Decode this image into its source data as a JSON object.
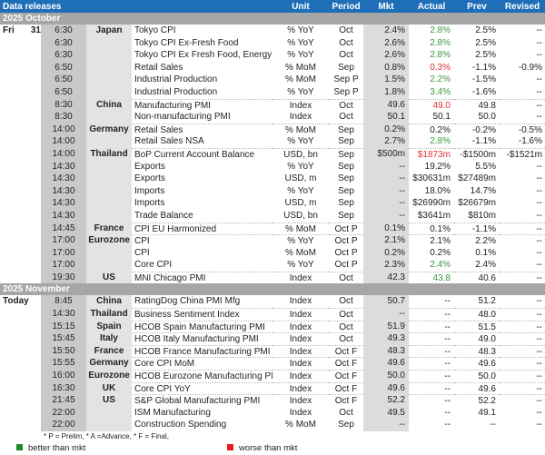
{
  "header": {
    "title": "Data releases",
    "unit": "Unit",
    "period": "Period",
    "mkt": "Mkt",
    "actual": "Actual",
    "prev": "Prev",
    "revised": "Revised"
  },
  "colors": {
    "better": "#3a9a3a",
    "worse": "#e03030",
    "header": "#1f6fb8"
  },
  "sections": [
    {
      "title": "2025 October",
      "day": "Fri",
      "date": "31",
      "rows": [
        {
          "time": "6:30",
          "country": "Japan",
          "event": "Tokyo CPI",
          "unit": "% YoY",
          "period": "Oct",
          "mkt": "2.4%",
          "actual": "2.8%",
          "tone": "g",
          "prev": "2.5%",
          "revised": "--"
        },
        {
          "time": "6:30",
          "country": "",
          "event": "Tokyo CPI Ex-Fresh Food",
          "unit": "% YoY",
          "period": "Oct",
          "mkt": "2.6%",
          "actual": "2.8%",
          "tone": "g",
          "prev": "2.5%",
          "revised": "--"
        },
        {
          "time": "6:30",
          "country": "",
          "event": "Tokyo CPI Ex Fresh Food, Energy",
          "unit": "% YoY",
          "period": "Oct",
          "mkt": "2.6%",
          "actual": "2.8%",
          "tone": "g",
          "prev": "2.5%",
          "revised": "--"
        },
        {
          "time": "6:50",
          "country": "",
          "event": "Retail Sales",
          "unit": "% MoM",
          "period": "Sep",
          "mkt": "0.8%",
          "actual": "0.3%",
          "tone": "r",
          "prev": "-1.1%",
          "revised": "-0.9%"
        },
        {
          "time": "6:50",
          "country": "",
          "event": "Industrial Production",
          "unit": "% MoM",
          "period": "Sep P",
          "mkt": "1.5%",
          "actual": "2.2%",
          "tone": "g",
          "prev": "-1.5%",
          "revised": "--"
        },
        {
          "time": "6:50",
          "country": "",
          "event": "Industrial Production",
          "unit": "% YoY",
          "period": "Sep P",
          "mkt": "1.8%",
          "actual": "3.4%",
          "tone": "g",
          "prev": "-1.6%",
          "revised": "--"
        },
        {
          "time": "8:30",
          "country": "China",
          "event": "Manufacturing PMI",
          "unit": "Index",
          "period": "Oct",
          "mkt": "49.6",
          "actual": "49.0",
          "tone": "r",
          "prev": "49.8",
          "revised": "--"
        },
        {
          "time": "8:30",
          "country": "",
          "event": "Non-manufacturing PMI",
          "unit": "Index",
          "period": "Oct",
          "mkt": "50.1",
          "actual": "50.1",
          "tone": "",
          "prev": "50.0",
          "revised": "--"
        },
        {
          "time": "14:00",
          "country": "Germany",
          "event": "Retail Sales",
          "unit": "% MoM",
          "period": "Sep",
          "mkt": "0.2%",
          "actual": "0.2%",
          "tone": "",
          "prev": "-0.2%",
          "revised": "-0.5%"
        },
        {
          "time": "14:00",
          "country": "",
          "event": "Retail Sales NSA",
          "unit": "% YoY",
          "period": "Sep",
          "mkt": "2.7%",
          "actual": "2.8%",
          "tone": "g",
          "prev": "-1.1%",
          "revised": "-1.6%"
        },
        {
          "time": "14:00",
          "country": "Thailand",
          "event": "BoP Current Account Balance",
          "unit": "USD, bn",
          "period": "Sep",
          "mkt": "$500m",
          "actual": "$1873m",
          "tone": "r",
          "prev": "-$1500m",
          "revised": "-$1521m"
        },
        {
          "time": "14:30",
          "country": "",
          "event": "Exports",
          "unit": "% YoY",
          "period": "Sep",
          "mkt": "--",
          "actual": "19.2%",
          "tone": "",
          "prev": "5.5%",
          "revised": "--"
        },
        {
          "time": "14:30",
          "country": "",
          "event": "Exports",
          "unit": "USD, m",
          "period": "Sep",
          "mkt": "--",
          "actual": "$30631m",
          "tone": "",
          "prev": "$27489m",
          "revised": "--"
        },
        {
          "time": "14:30",
          "country": "",
          "event": "Imports",
          "unit": "% YoY",
          "period": "Sep",
          "mkt": "--",
          "actual": "18.0%",
          "tone": "",
          "prev": "14.7%",
          "revised": "--"
        },
        {
          "time": "14:30",
          "country": "",
          "event": "Imports",
          "unit": "USD, m",
          "period": "Sep",
          "mkt": "--",
          "actual": "$26990m",
          "tone": "",
          "prev": "$26679m",
          "revised": "--"
        },
        {
          "time": "14:30",
          "country": "",
          "event": "Trade Balance",
          "unit": "USD, bn",
          "period": "Sep",
          "mkt": "--",
          "actual": "$3641m",
          "tone": "",
          "prev": "$810m",
          "revised": "--"
        },
        {
          "time": "14:45",
          "country": "France",
          "event": "CPI EU Harmonized",
          "unit": "% MoM",
          "period": "Oct P",
          "mkt": "0.1%",
          "actual": "0.1%",
          "tone": "",
          "prev": "-1.1%",
          "revised": "--"
        },
        {
          "time": "17:00",
          "country": "Eurozone",
          "event": "CPI",
          "unit": "% YoY",
          "period": "Oct P",
          "mkt": "2.1%",
          "actual": "2.1%",
          "tone": "",
          "prev": "2.2%",
          "revised": "--"
        },
        {
          "time": "17:00",
          "country": "",
          "event": "CPI",
          "unit": "% MoM",
          "period": "Oct P",
          "mkt": "0.2%",
          "actual": "0.2%",
          "tone": "",
          "prev": "0.1%",
          "revised": "--"
        },
        {
          "time": "17:00",
          "country": "",
          "event": "Core CPI",
          "unit": "% YoY",
          "period": "Oct P",
          "mkt": "2.3%",
          "actual": "2.4%",
          "tone": "g",
          "prev": "2.4%",
          "revised": "--"
        },
        {
          "time": "19:30",
          "country": "US",
          "event": "MNI Chicago PMI",
          "unit": "Index",
          "period": "Oct",
          "mkt": "42.3",
          "actual": "43.8",
          "tone": "g",
          "prev": "40.6",
          "revised": "--"
        }
      ]
    },
    {
      "title": "2025 November",
      "day": "Today",
      "date": "",
      "rows": [
        {
          "time": "8:45",
          "country": "China",
          "event": "RatingDog China PMI Mfg",
          "unit": "Index",
          "period": "Oct",
          "mkt": "50.7",
          "actual": "--",
          "tone": "",
          "prev": "51.2",
          "revised": "--"
        },
        {
          "time": "14:30",
          "country": "Thailand",
          "event": "Business Sentiment Index",
          "unit": "Index",
          "period": "Oct",
          "mkt": "--",
          "actual": "--",
          "tone": "",
          "prev": "48.0",
          "revised": "--"
        },
        {
          "time": "15:15",
          "country": "Spain",
          "event": "HCOB Spain Manufacturing PMI",
          "unit": "Index",
          "period": "Oct",
          "mkt": "51.9",
          "actual": "--",
          "tone": "",
          "prev": "51.5",
          "revised": "--"
        },
        {
          "time": "15:45",
          "country": "Italy",
          "event": "HCOB Italy Manufacturing PMI",
          "unit": "Index",
          "period": "Oct",
          "mkt": "49.3",
          "actual": "--",
          "tone": "",
          "prev": "49.0",
          "revised": "--"
        },
        {
          "time": "15:50",
          "country": "France",
          "event": "HCOB France Manufacturing PMI",
          "unit": "Index",
          "period": "Oct F",
          "mkt": "48.3",
          "actual": "--",
          "tone": "",
          "prev": "48.3",
          "revised": "--"
        },
        {
          "time": "15:55",
          "country": "Germany",
          "event": "Core CPI MoM",
          "unit": "Index",
          "period": "Oct F",
          "mkt": "49.6",
          "actual": "--",
          "tone": "",
          "prev": "49.6",
          "revised": "--"
        },
        {
          "time": "16:00",
          "country": "Eurozone",
          "event": "HCOB Eurozone Manufacturing PMI",
          "unit": "Index",
          "period": "Oct F",
          "mkt": "50.0",
          "actual": "--",
          "tone": "",
          "prev": "50.0",
          "revised": "--"
        },
        {
          "time": "16:30",
          "country": "UK",
          "event": "Core CPI YoY",
          "unit": "Index",
          "period": "Oct F",
          "mkt": "49.6",
          "actual": "--",
          "tone": "",
          "prev": "49.6",
          "revised": "--"
        },
        {
          "time": "21:45",
          "country": "US",
          "event": "S&P Global Manufacturing PMI",
          "unit": "Index",
          "period": "Oct F",
          "mkt": "52.2",
          "actual": "--",
          "tone": "",
          "prev": "52.2",
          "revised": "--"
        },
        {
          "time": "22:00",
          "country": "",
          "event": "ISM Manufacturing",
          "unit": "Index",
          "period": "Oct",
          "mkt": "49.5",
          "actual": "--",
          "tone": "",
          "prev": "49.1",
          "revised": "--"
        },
        {
          "time": "22:00",
          "country": "",
          "event": "Construction Spending",
          "unit": "% MoM",
          "period": "Sep",
          "mkt": "--",
          "actual": "--",
          "tone": "",
          "prev": "--",
          "revised": "--"
        }
      ]
    }
  ],
  "footnote": "* P = Prelim, * A =Advance, * F = Final,",
  "legend": {
    "better": "better than mkt",
    "worse": "worse than mkt"
  }
}
